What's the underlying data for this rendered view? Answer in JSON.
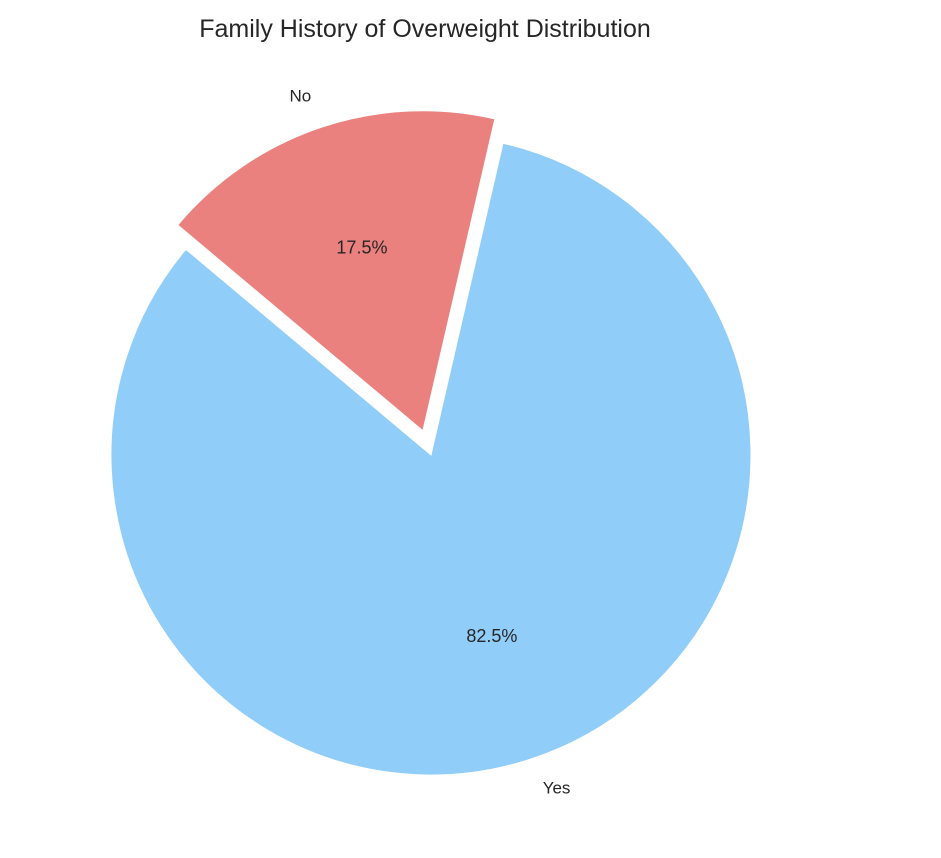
{
  "chart_data": {
    "type": "pie",
    "title": "Family History of Overweight Distribution",
    "slices": [
      {
        "label": "Yes",
        "value": 82.5,
        "pct_label": "82.5%",
        "color": "#90CDF9",
        "explode": false
      },
      {
        "label": "No",
        "value": 17.5,
        "pct_label": "17.5%",
        "color": "#EA817E",
        "explode": true
      }
    ],
    "start_angle_deg": 140,
    "legend": "none"
  }
}
